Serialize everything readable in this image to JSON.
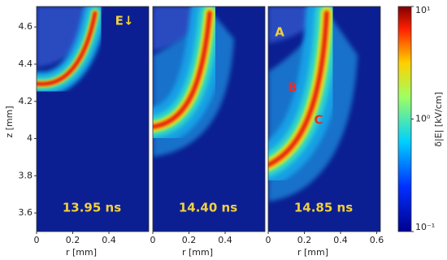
{
  "chart_data": [
    {
      "type": "heatmap",
      "xlabel": "r [mm]",
      "ylabel": "z [mm]",
      "xlim": [
        0,
        0.62
      ],
      "ylim": [
        3.5,
        4.71
      ],
      "xticks": [
        0,
        0.2,
        0.4
      ],
      "yticks": [
        3.6,
        3.8,
        4,
        4.2,
        4.4,
        4.6
      ],
      "annotations": [
        "13.95 ns",
        "E↓"
      ]
    },
    {
      "type": "heatmap",
      "xlabel": "r [mm]",
      "xlim": [
        0,
        0.62
      ],
      "ylim": [
        3.5,
        4.71
      ],
      "xticks": [
        0,
        0.2,
        0.4
      ],
      "annotations": [
        "14.40 ns"
      ]
    },
    {
      "type": "heatmap",
      "xlabel": "r [mm]",
      "xlim": [
        0,
        0.62
      ],
      "ylim": [
        3.5,
        4.71
      ],
      "xticks": [
        0,
        0.2,
        0.4,
        0.6
      ],
      "annotations": [
        "14.85 ns",
        "A",
        "B",
        "C"
      ]
    },
    {
      "type": "colorbar",
      "label": "δ|E| [kV/cm]",
      "log": true,
      "clim": [
        0.1,
        10
      ],
      "cticks": [
        {
          "value": 0.1,
          "label": "10⁻¹"
        },
        {
          "value": 1,
          "label": "10⁰"
        },
        {
          "value": 10,
          "label": "10¹"
        }
      ]
    }
  ]
}
